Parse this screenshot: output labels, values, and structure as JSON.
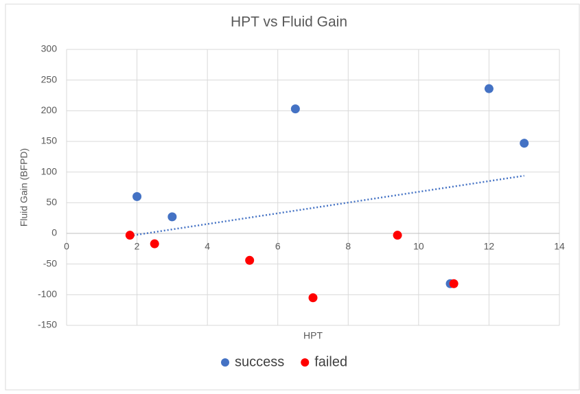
{
  "chart_data": {
    "type": "scatter",
    "title": "HPT vs Fluid Gain",
    "x_label": "HPT",
    "y_label": "Fluid Gain (BFPD)",
    "series": [
      {
        "name": "success",
        "color": "#4472c4",
        "x": [
          2,
          3,
          6.5,
          12,
          13,
          10.9
        ],
        "values": [
          60,
          27,
          203,
          236,
          147,
          -82
        ]
      },
      {
        "name": "failed",
        "color": "#ff0000",
        "x": [
          1.8,
          2.5,
          5.2,
          7,
          9.4,
          11
        ],
        "values": [
          -3,
          -17,
          -44,
          -105,
          -3,
          -82
        ]
      }
    ],
    "trendline": {
      "color": "#4472c4",
      "x": [
        1.8,
        13
      ],
      "values": [
        -4,
        94
      ]
    },
    "xlim": [
      0,
      14
    ],
    "xticks": [
      0,
      2,
      4,
      6,
      8,
      10,
      12,
      14
    ],
    "ylim": [
      -150,
      300
    ],
    "yticks": [
      -150,
      -100,
      -50,
      0,
      50,
      100,
      150,
      200,
      250,
      300
    ],
    "grid": true,
    "legend": "bottom"
  }
}
